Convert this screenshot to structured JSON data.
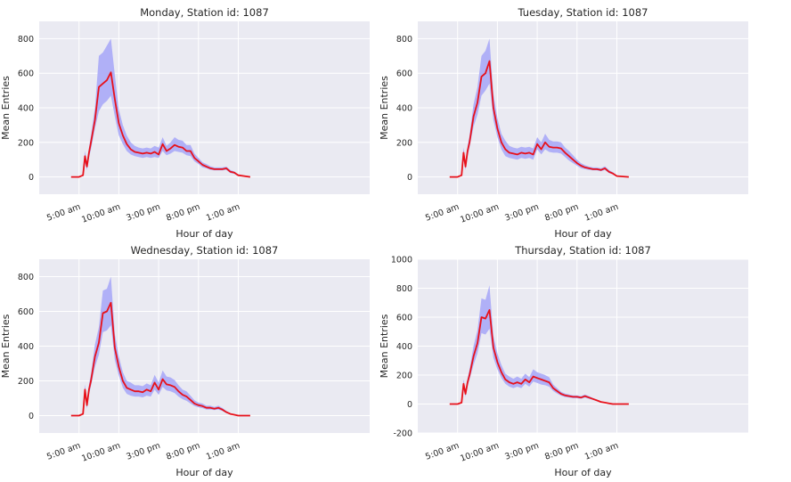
{
  "chart_data": [
    {
      "type": "line",
      "title": "Monday, Station id: 1087",
      "xlabel": "Hour of day",
      "ylabel": "Mean Entries",
      "ylim": [
        -100,
        900
      ],
      "yticks": [
        0,
        200,
        400,
        600,
        800
      ],
      "xlim": [
        0,
        41.5
      ],
      "xticks": [
        5,
        10,
        15,
        20,
        25
      ],
      "xticklabels": [
        "5:00 am",
        "10:00 am",
        "3:00 pm",
        "8:00 pm",
        "1:00 am"
      ],
      "grid": true,
      "band_color": "#b0b0f7",
      "line_color": "#e8111a",
      "series": [
        {
          "x": [
            4,
            5,
            5.5,
            5.75,
            6,
            6.25,
            6.5,
            7,
            7.5,
            8,
            8.5,
            9,
            9.5,
            10,
            10.5,
            11,
            11.5,
            12,
            12.5,
            13,
            13.5,
            14,
            14.5,
            15,
            15.5,
            16,
            16.5,
            17,
            17.5,
            18,
            18.5,
            19,
            19.5,
            20,
            20.5,
            21,
            21.5,
            22,
            22.5,
            23,
            23.5,
            24,
            24.5,
            25,
            26.5
          ],
          "y": [
            0,
            0,
            10,
            120,
            60,
            140,
            200,
            330,
            520,
            540,
            560,
            605,
            450,
            310,
            240,
            190,
            160,
            145,
            140,
            135,
            140,
            135,
            145,
            130,
            190,
            150,
            165,
            185,
            175,
            170,
            150,
            150,
            110,
            90,
            70,
            60,
            50,
            45,
            45,
            45,
            50,
            30,
            25,
            10,
            0
          ],
          "lower": [
            0,
            0,
            5,
            80,
            40,
            110,
            160,
            280,
            380,
            420,
            440,
            470,
            350,
            240,
            190,
            150,
            130,
            120,
            115,
            110,
            115,
            110,
            115,
            110,
            150,
            125,
            135,
            150,
            145,
            140,
            125,
            120,
            90,
            75,
            55,
            50,
            40,
            38,
            38,
            38,
            40,
            22,
            18,
            5,
            0
          ],
          "upper": [
            0,
            0,
            15,
            150,
            90,
            170,
            240,
            400,
            700,
            720,
            760,
            800,
            590,
            390,
            300,
            240,
            200,
            180,
            170,
            165,
            170,
            165,
            180,
            170,
            230,
            180,
            200,
            230,
            215,
            210,
            185,
            185,
            135,
            110,
            85,
            75,
            62,
            55,
            55,
            55,
            60,
            40,
            32,
            15,
            0
          ]
        }
      ]
    },
    {
      "type": "line",
      "title": "Tuesday, Station id: 1087",
      "xlabel": "Hour of day",
      "ylabel": "Mean Entries",
      "ylim": [
        -100,
        900
      ],
      "yticks": [
        0,
        200,
        400,
        600,
        800
      ],
      "xlim": [
        0,
        41.5
      ],
      "xticks": [
        5,
        10,
        15,
        20,
        25
      ],
      "xticklabels": [
        "5:00 am",
        "10:00 am",
        "3:00 pm",
        "8:00 pm",
        "1:00 am"
      ],
      "grid": true,
      "band_color": "#b0b0f7",
      "line_color": "#e8111a",
      "series": [
        {
          "x": [
            4,
            5,
            5.5,
            5.75,
            6,
            6.25,
            6.5,
            7,
            7.5,
            8,
            8.5,
            9,
            9.5,
            10,
            10.5,
            11,
            11.5,
            12,
            12.5,
            13,
            13.5,
            14,
            14.5,
            15,
            15.5,
            16,
            16.5,
            17,
            17.5,
            18,
            18.5,
            19,
            19.5,
            20,
            20.5,
            21,
            21.5,
            22,
            22.5,
            23,
            23.5,
            24,
            24.5,
            25,
            26.5
          ],
          "y": [
            0,
            0,
            10,
            140,
            60,
            150,
            200,
            350,
            430,
            580,
            600,
            670,
            400,
            280,
            200,
            160,
            140,
            135,
            130,
            140,
            135,
            140,
            130,
            190,
            160,
            200,
            175,
            170,
            170,
            165,
            140,
            120,
            100,
            80,
            65,
            55,
            50,
            45,
            45,
            40,
            50,
            30,
            20,
            5,
            0
          ],
          "lower": [
            0,
            0,
            5,
            100,
            40,
            120,
            170,
            290,
            360,
            470,
            500,
            540,
            330,
            230,
            160,
            120,
            110,
            105,
            100,
            110,
            105,
            110,
            100,
            160,
            130,
            160,
            145,
            140,
            140,
            135,
            115,
            95,
            80,
            65,
            50,
            45,
            40,
            38,
            38,
            33,
            40,
            22,
            15,
            3,
            0
          ],
          "upper": [
            0,
            0,
            15,
            170,
            90,
            180,
            240,
            420,
            520,
            700,
            730,
            800,
            480,
            340,
            250,
            210,
            180,
            170,
            165,
            175,
            170,
            175,
            165,
            230,
            200,
            250,
            215,
            205,
            205,
            200,
            170,
            150,
            125,
            100,
            80,
            68,
            60,
            55,
            55,
            50,
            62,
            40,
            28,
            10,
            0
          ]
        }
      ]
    },
    {
      "type": "line",
      "title": "Wednesday, Station id: 1087",
      "xlabel": "Hour of day",
      "ylabel": "Mean Entries",
      "ylim": [
        -100,
        900
      ],
      "yticks": [
        0,
        200,
        400,
        600,
        800
      ],
      "xlim": [
        0,
        41.5
      ],
      "xticks": [
        5,
        10,
        15,
        20,
        25
      ],
      "xticklabels": [
        "5:00 am",
        "10:00 am",
        "3:00 pm",
        "8:00 pm",
        "1:00 am"
      ],
      "grid": true,
      "band_color": "#b0b0f7",
      "line_color": "#e8111a",
      "series": [
        {
          "x": [
            4,
            5,
            5.5,
            5.75,
            6,
            6.25,
            6.5,
            7,
            7.5,
            8,
            8.5,
            9,
            9.5,
            10,
            10.5,
            11,
            11.5,
            12,
            12.5,
            13,
            13.5,
            14,
            14.5,
            15,
            15.5,
            16,
            16.5,
            17,
            17.5,
            18,
            18.5,
            19,
            19.5,
            20,
            20.5,
            21,
            21.5,
            22,
            22.5,
            23,
            23.5,
            24,
            24.5,
            25,
            26.5
          ],
          "y": [
            0,
            0,
            10,
            150,
            60,
            150,
            200,
            340,
            420,
            590,
            600,
            650,
            390,
            280,
            200,
            160,
            150,
            140,
            140,
            135,
            150,
            140,
            190,
            150,
            210,
            180,
            175,
            165,
            140,
            120,
            110,
            90,
            70,
            60,
            55,
            45,
            45,
            40,
            45,
            35,
            20,
            10,
            5,
            0,
            0
          ],
          "lower": [
            0,
            0,
            5,
            110,
            40,
            120,
            170,
            280,
            350,
            480,
            490,
            520,
            320,
            230,
            160,
            125,
            115,
            110,
            110,
            105,
            115,
            110,
            150,
            120,
            165,
            145,
            140,
            130,
            110,
            95,
            85,
            70,
            55,
            48,
            43,
            35,
            35,
            32,
            35,
            27,
            15,
            7,
            3,
            0,
            0
          ],
          "upper": [
            0,
            0,
            15,
            180,
            90,
            180,
            240,
            410,
            510,
            720,
            730,
            800,
            470,
            340,
            250,
            200,
            190,
            175,
            175,
            170,
            185,
            175,
            235,
            190,
            260,
            225,
            220,
            205,
            175,
            150,
            140,
            115,
            88,
            75,
            70,
            57,
            57,
            50,
            57,
            45,
            27,
            14,
            7,
            0,
            0
          ]
        }
      ]
    },
    {
      "type": "line",
      "title": "Thursday, Station id: 1087",
      "xlabel": "Hour of day",
      "ylabel": "Mean Entries",
      "ylim": [
        -200,
        1000
      ],
      "yticks": [
        -200,
        0,
        200,
        400,
        600,
        800,
        1000
      ],
      "xlim": [
        0,
        41.5
      ],
      "xticks": [
        5,
        10,
        15,
        20,
        25
      ],
      "xticklabels": [
        "5:00 am",
        "10:00 am",
        "3:00 pm",
        "8:00 pm",
        "1:00 am"
      ],
      "grid": true,
      "band_color": "#b0b0f7",
      "line_color": "#e8111a",
      "series": [
        {
          "x": [
            4,
            5,
            5.5,
            5.75,
            6,
            6.25,
            6.5,
            7,
            7.5,
            8,
            8.5,
            9,
            9.5,
            10,
            10.5,
            11,
            11.5,
            12,
            12.5,
            13,
            13.5,
            14,
            14.5,
            15,
            15.5,
            16,
            16.5,
            17,
            17.5,
            18,
            18.5,
            19,
            19.5,
            20,
            20.5,
            21,
            21.5,
            22,
            22.5,
            23,
            23.5,
            24,
            24.5,
            25,
            26.5
          ],
          "y": [
            0,
            0,
            10,
            140,
            70,
            150,
            200,
            330,
            420,
            600,
            590,
            650,
            390,
            290,
            220,
            170,
            150,
            140,
            150,
            140,
            170,
            150,
            190,
            180,
            170,
            160,
            150,
            110,
            90,
            70,
            60,
            55,
            50,
            50,
            45,
            55,
            45,
            35,
            25,
            15,
            10,
            5,
            0,
            0,
            0
          ],
          "lower": [
            0,
            0,
            5,
            100,
            50,
            120,
            170,
            270,
            350,
            490,
            480,
            520,
            320,
            240,
            180,
            140,
            120,
            110,
            120,
            110,
            140,
            120,
            155,
            145,
            135,
            130,
            120,
            90,
            72,
            58,
            48,
            45,
            40,
            40,
            36,
            45,
            36,
            28,
            20,
            12,
            8,
            4,
            0,
            0,
            0
          ],
          "upper": [
            0,
            0,
            15,
            170,
            100,
            180,
            240,
            400,
            510,
            730,
            720,
            820,
            470,
            350,
            270,
            210,
            190,
            175,
            190,
            175,
            210,
            185,
            240,
            220,
            210,
            200,
            185,
            135,
            110,
            85,
            72,
            66,
            60,
            60,
            55,
            66,
            55,
            42,
            30,
            18,
            12,
            6,
            0,
            0,
            0
          ]
        }
      ]
    }
  ]
}
